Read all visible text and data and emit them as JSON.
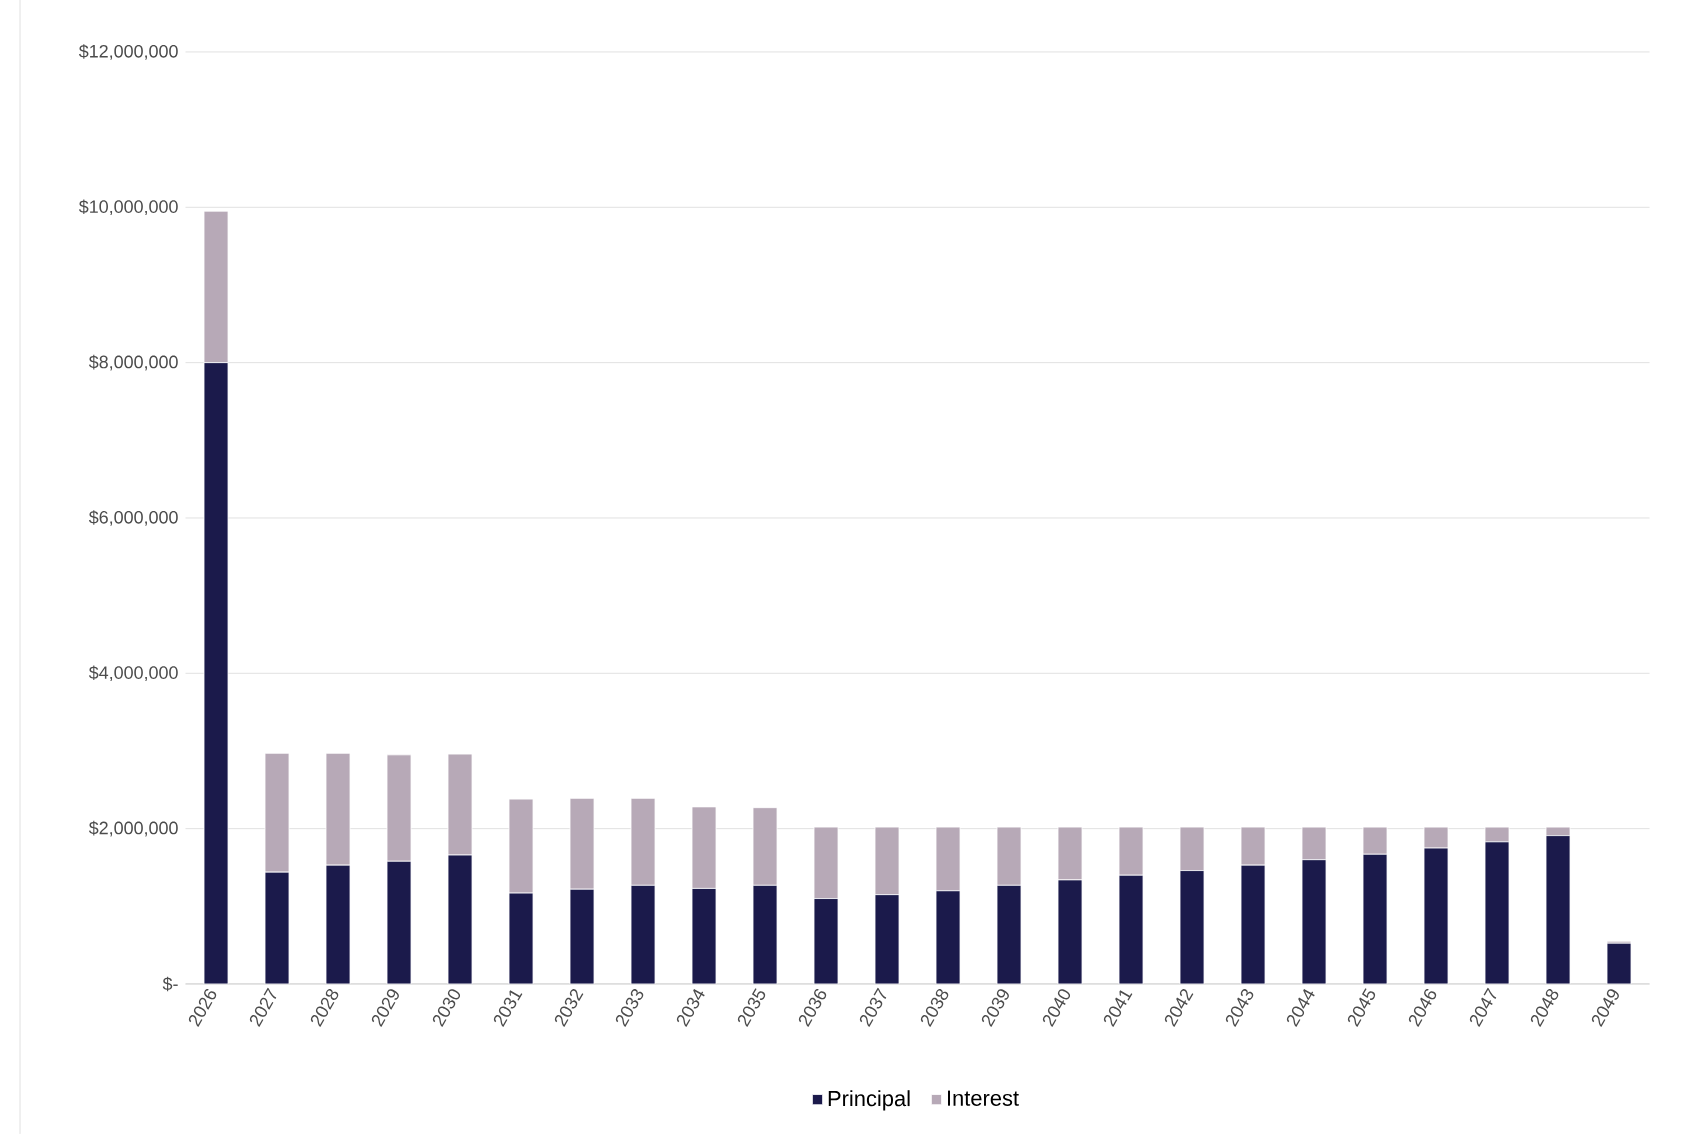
{
  "chart_data": {
    "type": "bar",
    "stacked": true,
    "categories": [
      "2026",
      "2027",
      "2028",
      "2029",
      "2030",
      "2031",
      "2032",
      "2033",
      "2034",
      "2035",
      "2036",
      "2037",
      "2038",
      "2039",
      "2040",
      "2041",
      "2042",
      "2043",
      "2044",
      "2045",
      "2046",
      "2047",
      "2048",
      "2049"
    ],
    "series": [
      {
        "name": "Principal",
        "color": "#1b1a4b",
        "values": [
          8000000,
          1440000,
          1530000,
          1580000,
          1660000,
          1170000,
          1220000,
          1270000,
          1230000,
          1270000,
          1100000,
          1150000,
          1200000,
          1270000,
          1340000,
          1400000,
          1460000,
          1530000,
          1600000,
          1670000,
          1750000,
          1830000,
          1910000,
          525000
        ]
      },
      {
        "name": "Interest",
        "color": "#b7a9b7",
        "values": [
          1950000,
          1530000,
          1440000,
          1370000,
          1300000,
          1210000,
          1170000,
          1120000,
          1050000,
          1000000,
          920000,
          870000,
          820000,
          750000,
          680000,
          620000,
          560000,
          490000,
          420000,
          350000,
          270000,
          190000,
          110000,
          25000
        ]
      }
    ],
    "ylim": [
      0,
      12000000
    ],
    "yticks": [
      {
        "value": 0,
        "label": "$-"
      },
      {
        "value": 2000000,
        "label": "$2,000,000"
      },
      {
        "value": 4000000,
        "label": "$4,000,000"
      },
      {
        "value": 6000000,
        "label": "$6,000,000"
      },
      {
        "value": 8000000,
        "label": "$8,000,000"
      },
      {
        "value": 10000000,
        "label": "$10,000,000"
      },
      {
        "value": 12000000,
        "label": "$12,000,000"
      }
    ],
    "grid": "y",
    "legend": "bottom"
  }
}
